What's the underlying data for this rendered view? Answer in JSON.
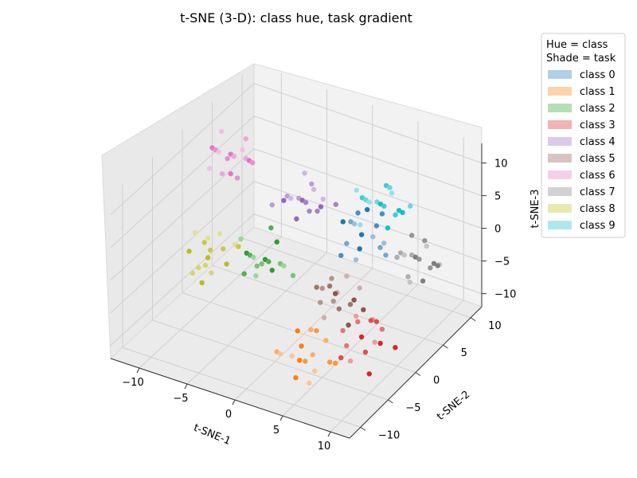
{
  "chart_data": {
    "type": "scatter",
    "projection": "3d",
    "title": "t-SNE (3-D): class hue, task gradient",
    "xlabel": "t-SNE-1",
    "ylabel": "t-SNE-2",
    "zlabel": "t-SNE-3",
    "xlim": [
      -13,
      12
    ],
    "ylim": [
      -12,
      12
    ],
    "zlim": [
      -12,
      13
    ],
    "xticks": [
      -10,
      -5,
      0,
      5,
      10
    ],
    "yticks": [
      -10,
      -5,
      0,
      5,
      10
    ],
    "zticks": [
      -10,
      -5,
      0,
      5,
      10
    ],
    "grid": true,
    "legend": {
      "placement": "right",
      "title_line1": "Hue = class",
      "title_line2": "Shade = task"
    },
    "series": [
      {
        "name": "class 0",
        "color": "#1f77b4",
        "points": [
          [
            5,
            2,
            4
          ],
          [
            6,
            3,
            5
          ],
          [
            4,
            1,
            3
          ],
          [
            5,
            4,
            2
          ],
          [
            6,
            0,
            4
          ],
          [
            4,
            3,
            6
          ],
          [
            7,
            2,
            3
          ],
          [
            5,
            1,
            1
          ],
          [
            3,
            2,
            5
          ],
          [
            6,
            4,
            6
          ],
          [
            2,
            5,
            2
          ],
          [
            8,
            1,
            5
          ],
          [
            5,
            3,
            7
          ],
          [
            4,
            0,
            2
          ],
          [
            7,
            3,
            1
          ],
          [
            3,
            4,
            3
          ]
        ]
      },
      {
        "name": "class 1",
        "color": "#ff7f0e",
        "points": [
          [
            4,
            -7,
            -6
          ],
          [
            5,
            -8,
            -7
          ],
          [
            6,
            -6,
            -5
          ],
          [
            3,
            -7,
            -8
          ],
          [
            5,
            -9,
            -6
          ],
          [
            7,
            -7,
            -7
          ],
          [
            4,
            -5,
            -9
          ],
          [
            6,
            -8,
            -8
          ],
          [
            3,
            -6,
            -5
          ],
          [
            5,
            -6,
            -4
          ],
          [
            2,
            -8,
            -7
          ],
          [
            6,
            -9,
            -9
          ],
          [
            4,
            -8,
            -10
          ],
          [
            7,
            -6,
            -8
          ],
          [
            5,
            -7,
            -3
          ],
          [
            3,
            -9,
            -6
          ]
        ]
      },
      {
        "name": "class 2",
        "color": "#2ca02c",
        "points": [
          [
            -6,
            3,
            -6
          ],
          [
            -7,
            2,
            -5
          ],
          [
            -5,
            4,
            -7
          ],
          [
            -6,
            1,
            -4
          ],
          [
            -8,
            3,
            -6
          ],
          [
            -5,
            2,
            -5
          ],
          [
            -7,
            4,
            -8
          ],
          [
            -4,
            3,
            -6
          ],
          [
            -6,
            5,
            -5
          ],
          [
            -7,
            1,
            -7
          ],
          [
            -5,
            0,
            -4
          ],
          [
            -8,
            2,
            -3
          ],
          [
            -4,
            1,
            -5
          ],
          [
            -6,
            4,
            -2
          ],
          [
            -3,
            3,
            -7
          ],
          [
            -7,
            3,
            -9
          ]
        ]
      },
      {
        "name": "class 3",
        "color": "#d62728",
        "points": [
          [
            8,
            -3,
            -6
          ],
          [
            9,
            -4,
            -7
          ],
          [
            7,
            -2,
            -5
          ],
          [
            8,
            -5,
            -8
          ],
          [
            10,
            -3,
            -6
          ],
          [
            9,
            -2,
            -4
          ],
          [
            7,
            -4,
            -7
          ],
          [
            8,
            -1,
            -5
          ],
          [
            10,
            -5,
            -9
          ],
          [
            9,
            -3,
            -3
          ],
          [
            6,
            -3,
            -6
          ],
          [
            8,
            -4,
            -2
          ],
          [
            11,
            -2,
            -7
          ],
          [
            7,
            -5,
            -8
          ],
          [
            9,
            -1,
            -6
          ],
          [
            10,
            -4,
            -5
          ]
        ]
      },
      {
        "name": "class 4",
        "color": "#9467bd",
        "points": [
          [
            -2,
            3,
            5
          ],
          [
            -1,
            2,
            6
          ],
          [
            -3,
            4,
            4
          ],
          [
            -2,
            1,
            7
          ],
          [
            0,
            3,
            5
          ],
          [
            -1,
            4,
            3
          ],
          [
            -3,
            2,
            6
          ],
          [
            -2,
            5,
            5
          ],
          [
            -4,
            3,
            4
          ],
          [
            0,
            1,
            6
          ],
          [
            -1,
            3,
            8
          ],
          [
            -3,
            5,
            7
          ],
          [
            -2,
            2,
            3
          ],
          [
            1,
            4,
            5
          ],
          [
            -4,
            1,
            5
          ],
          [
            -1,
            5,
            4
          ]
        ]
      },
      {
        "name": "class 5",
        "color": "#8c564b",
        "points": [
          [
            4,
            -1,
            -3
          ],
          [
            5,
            -2,
            -4
          ],
          [
            3,
            0,
            -2
          ],
          [
            4,
            -3,
            -5
          ],
          [
            6,
            -1,
            -3
          ],
          [
            5,
            0,
            -5
          ],
          [
            3,
            -2,
            -4
          ],
          [
            4,
            1,
            -2
          ],
          [
            6,
            -2,
            -6
          ],
          [
            2,
            -1,
            -3
          ],
          [
            5,
            -3,
            -2
          ],
          [
            3,
            1,
            -5
          ],
          [
            7,
            -1,
            -4
          ],
          [
            4,
            -2,
            -1
          ],
          [
            2,
            0,
            -4
          ],
          [
            6,
            0,
            -2
          ]
        ]
      },
      {
        "name": "class 6",
        "color": "#e377c2",
        "points": [
          [
            -11,
            5,
            6
          ],
          [
            -12,
            4,
            7
          ],
          [
            -10,
            6,
            5
          ],
          [
            -11,
            3,
            8
          ],
          [
            -9,
            5,
            6
          ],
          [
            -12,
            6,
            4
          ],
          [
            -10,
            4,
            7
          ],
          [
            -11,
            7,
            5
          ],
          [
            -13,
            5,
            6
          ],
          [
            -9,
            3,
            5
          ],
          [
            -10,
            6,
            8
          ],
          [
            -12,
            3,
            5
          ],
          [
            -11,
            5,
            3
          ],
          [
            -8,
            4,
            7
          ],
          [
            -10,
            2,
            6
          ],
          [
            -12,
            5,
            9
          ]
        ]
      },
      {
        "name": "class 7",
        "color": "#7f7f7f",
        "points": [
          [
            9,
            5,
            0
          ],
          [
            10,
            4,
            1
          ],
          [
            8,
            6,
            -1
          ],
          [
            9,
            3,
            2
          ],
          [
            11,
            5,
            0
          ],
          [
            10,
            6,
            -2
          ],
          [
            8,
            4,
            1
          ],
          [
            9,
            7,
            0
          ],
          [
            11,
            3,
            -1
          ],
          [
            10,
            5,
            3
          ],
          [
            7,
            5,
            -1
          ],
          [
            9,
            4,
            -3
          ],
          [
            12,
            4,
            1
          ],
          [
            8,
            6,
            2
          ],
          [
            10,
            2,
            0
          ],
          [
            11,
            6,
            -1
          ]
        ]
      },
      {
        "name": "class 8",
        "color": "#bcbd22",
        "points": [
          [
            -9,
            -2,
            -3
          ],
          [
            -10,
            -1,
            -2
          ],
          [
            -8,
            -3,
            -4
          ],
          [
            -9,
            0,
            -1
          ],
          [
            -11,
            -2,
            -3
          ],
          [
            -8,
            -1,
            -2
          ],
          [
            -10,
            -3,
            -5
          ],
          [
            -9,
            -2,
            0
          ],
          [
            -7,
            -2,
            -3
          ],
          [
            -10,
            0,
            -4
          ],
          [
            -8,
            -4,
            -2
          ],
          [
            -11,
            -1,
            -1
          ],
          [
            -9,
            -3,
            -6
          ],
          [
            -7,
            0,
            -2
          ],
          [
            -10,
            -2,
            -5
          ],
          [
            -8,
            1,
            -3
          ]
        ]
      },
      {
        "name": "class 9",
        "color": "#17becf",
        "points": [
          [
            4,
            7,
            4
          ],
          [
            5,
            6,
            5
          ],
          [
            3,
            8,
            3
          ],
          [
            4,
            5,
            6
          ],
          [
            6,
            7,
            4
          ],
          [
            5,
            8,
            2
          ],
          [
            3,
            6,
            5
          ],
          [
            4,
            9,
            4
          ],
          [
            6,
            5,
            3
          ],
          [
            2,
            7,
            4
          ],
          [
            5,
            7,
            7
          ],
          [
            3,
            5,
            2
          ],
          [
            7,
            6,
            5
          ],
          [
            4,
            8,
            6
          ],
          [
            6,
            9,
            3
          ],
          [
            2,
            6,
            6
          ]
        ]
      }
    ]
  }
}
